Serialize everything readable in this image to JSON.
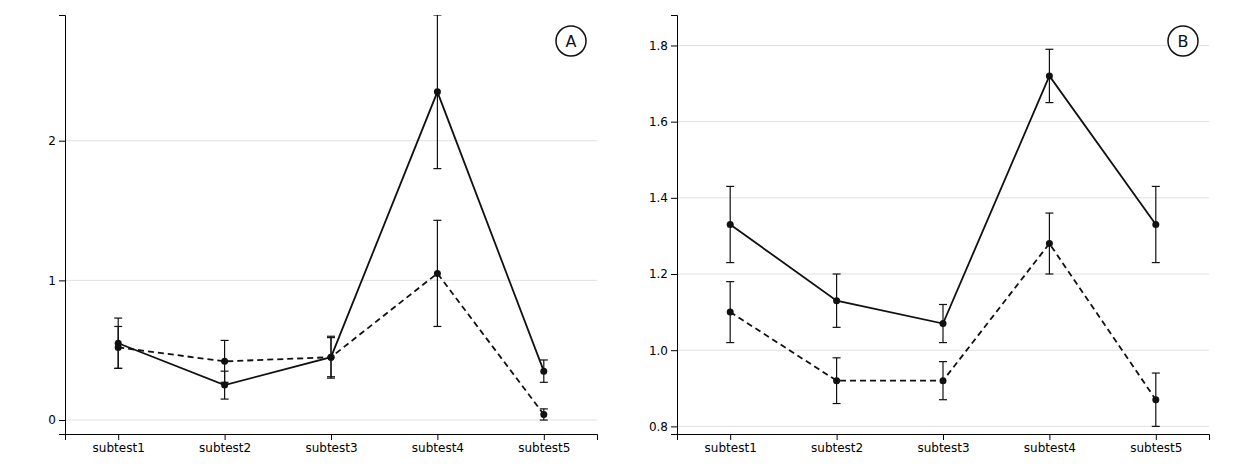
{
  "chart_data": [
    {
      "type": "line",
      "annotations": [
        "A"
      ],
      "x": [
        1,
        2,
        3,
        4,
        5
      ],
      "xlim": [
        0.5,
        5.5
      ],
      "xticks": [
        {
          "value": 1,
          "label": "subtest1"
        },
        {
          "value": 2,
          "label": "subtest2"
        },
        {
          "value": 3,
          "label": "subtest3"
        },
        {
          "value": 4,
          "label": "subtest4"
        },
        {
          "value": 5,
          "label": "subtest5"
        }
      ],
      "ylim": [
        -0.1,
        2.9
      ],
      "yticks": [
        0,
        1,
        2
      ],
      "grid": true,
      "series": [
        {
          "values": [
            0.55,
            0.25,
            0.45,
            2.35,
            0.35
          ],
          "error": [
            0.18,
            0.1,
            0.15,
            0.55,
            0.08
          ],
          "color": "#111111",
          "marker": "circle",
          "line_style": "solid"
        },
        {
          "values": [
            0.52,
            0.42,
            0.45,
            1.05,
            0.04
          ],
          "error": [
            0.15,
            0.15,
            0.14,
            0.38,
            0.04
          ],
          "color": "#111111",
          "marker": "circle",
          "line_style": "dashed"
        }
      ]
    },
    {
      "type": "line",
      "annotations": [
        "B"
      ],
      "x": [
        1,
        2,
        3,
        4,
        5
      ],
      "xlim": [
        0.5,
        5.5
      ],
      "xticks": [
        {
          "value": 1,
          "label": "subtest1"
        },
        {
          "value": 2,
          "label": "subtest2"
        },
        {
          "value": 3,
          "label": "subtest3"
        },
        {
          "value": 4,
          "label": "subtest4"
        },
        {
          "value": 5,
          "label": "subtest5"
        }
      ],
      "ylim": [
        0.78,
        1.88
      ],
      "yticks": [
        0.8,
        {
          "value": 1.0,
          "label": "1.0"
        },
        1.2,
        1.4,
        1.6,
        1.8
      ],
      "grid": true,
      "series": [
        {
          "values": [
            1.33,
            1.13,
            1.07,
            1.72,
            1.33
          ],
          "error": [
            0.1,
            0.07,
            0.05,
            0.07,
            0.1
          ],
          "color": "#111111",
          "marker": "circle",
          "line_style": "solid"
        },
        {
          "values": [
            1.1,
            0.92,
            0.92,
            1.28,
            0.87
          ],
          "error": [
            0.08,
            0.06,
            0.05,
            0.08,
            0.07
          ],
          "color": "#111111",
          "marker": "circle",
          "line_style": "dashed"
        }
      ]
    }
  ]
}
